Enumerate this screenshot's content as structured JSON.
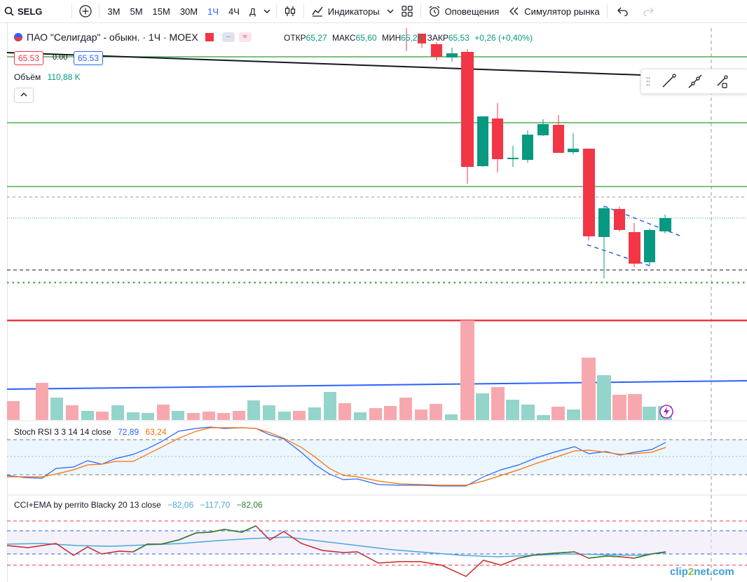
{
  "toolbar": {
    "symbol": "SELG",
    "intervals": [
      "3М",
      "5М",
      "15М",
      "30М",
      "1Ч",
      "4Ч",
      "Д"
    ],
    "active_interval": "1Ч",
    "indicators_label": "Индикаторы",
    "alerts_label": "Оповещения",
    "replay_label": "Симулятор рынка"
  },
  "legend": {
    "title": "ПАО \"Селигдар\" - обыкн. · 1Ч · MOEX",
    "open_label": "ОТКР",
    "open": "65,27",
    "high_label": "МАКС",
    "high": "65,60",
    "low_label": "МИН",
    "low": "65,20",
    "close_label": "ЗАКР",
    "close": "65,53",
    "change": "+0,26 (+0,40%)",
    "bid": "65.53",
    "spread": "0.00",
    "ask": "65.53"
  },
  "volume": {
    "label": "Объём",
    "value": "110,88 K"
  },
  "stoch_rsi": {
    "label": "Stoch RSI 3 3 14 14 close",
    "k": "72,89",
    "d": "63,24",
    "k_color": "#2962ff",
    "d_color": "#ff6d00"
  },
  "cci": {
    "label": "CCI+EMA by perrito Blacky 20 13 close",
    "v1": "−82,06",
    "v2": "−117,70",
    "v3": "−82,06"
  },
  "colors": {
    "up": "#089981",
    "down": "#f23645",
    "accent": "#2962ff"
  },
  "icons": [
    "search-icon",
    "plus-circle-icon",
    "candles-icon",
    "indicators-icon",
    "templates-icon",
    "alarm-clock-icon",
    "replay-icon",
    "undo-icon",
    "redo-icon",
    "trendline-icon",
    "ray-icon",
    "segment-icon",
    "lightning-icon"
  ],
  "watermark": {
    "a": "clip",
    "b": "2",
    "c": "net.com"
  }
}
